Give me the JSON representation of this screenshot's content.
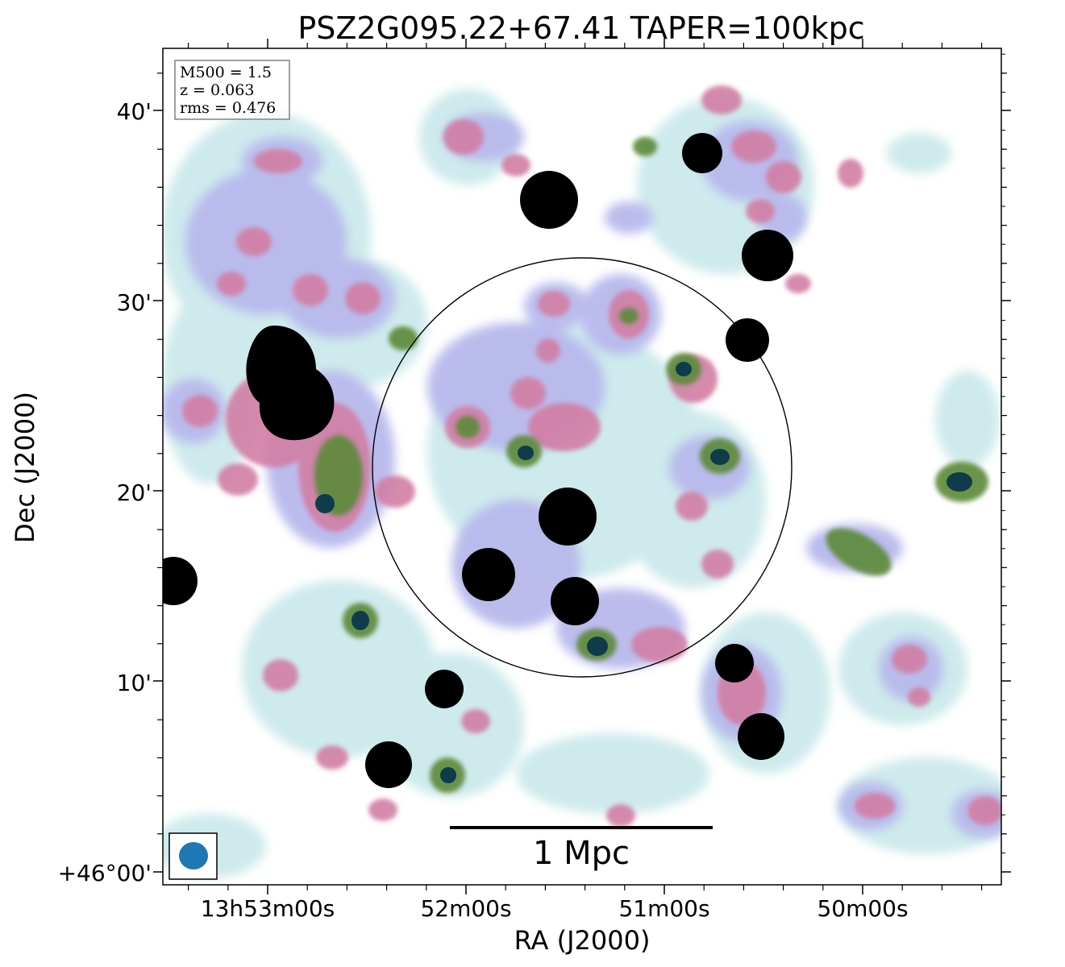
{
  "title": "PSZ2G095.22+67.41 TAPER=100kpc",
  "chart_data": {
    "type": "heatmap",
    "title": "PSZ2G095.22+67.41 TAPER=100kpc",
    "xlabel": "RA (J2000)",
    "ylabel": "Dec (J2000)",
    "x_tick_labels": [
      "13h53m00s",
      "52m00s",
      "51m00s",
      "50m00s"
    ],
    "y_tick_labels": [
      "+46°00'",
      "10'",
      "20'",
      "30'",
      "40'"
    ],
    "info_box": [
      "M500 = 1.5",
      "z = 0.063",
      "rms = 0.476"
    ],
    "scale_bar_label": "1 Mpc",
    "colormap": "cubehelix_r",
    "colors": {
      "faint": "#c9e8ea",
      "low": "#b8b9ec",
      "mid": "#d27ea4",
      "high": "#5d8a3a",
      "peak": "#0e3c4a",
      "saturated": "#000000",
      "beam": "#1f77b4"
    }
  }
}
